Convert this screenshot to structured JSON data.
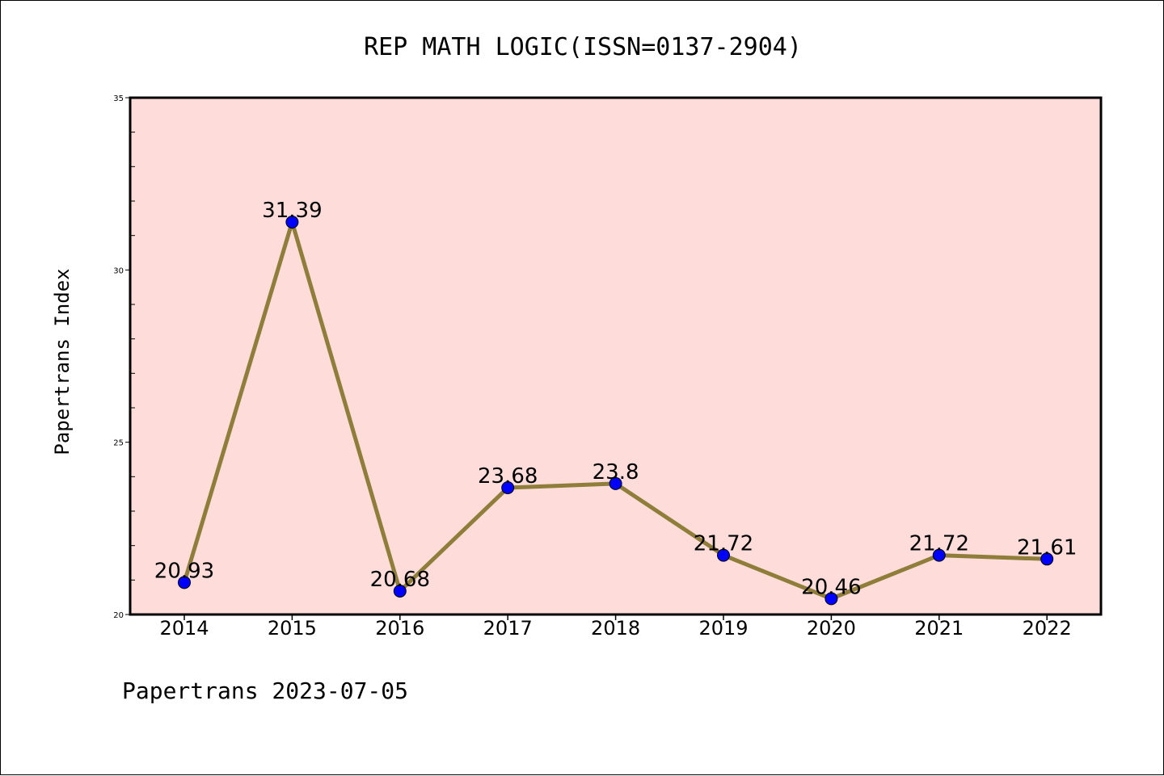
{
  "chart_data": {
    "type": "line",
    "title": "REP MATH LOGIC(ISSN=0137-2904)",
    "xlabel": "",
    "ylabel": "Papertrans Index",
    "categories": [
      "2014",
      "2015",
      "2016",
      "2017",
      "2018",
      "2019",
      "2020",
      "2021",
      "2022"
    ],
    "series": [
      {
        "values": [
          20.93,
          31.39,
          20.68,
          23.68,
          23.8,
          21.72,
          20.46,
          21.72,
          21.61
        ],
        "labels": [
          "20.93",
          "31.39",
          "20.68",
          "23.68",
          "23.8",
          "21.72",
          "20.46",
          "21.72",
          "21.61"
        ]
      }
    ],
    "ylim": [
      20,
      35
    ],
    "yticks": [
      20,
      25,
      30,
      35
    ],
    "ytick_labels": [
      "20",
      "25",
      "30",
      "35"
    ],
    "grid": false,
    "colors": {
      "plot_background": "#fddcda",
      "line": "#8f7d3a",
      "marker": "#0000ff"
    }
  },
  "footer": "Papertrans 2023-07-05"
}
